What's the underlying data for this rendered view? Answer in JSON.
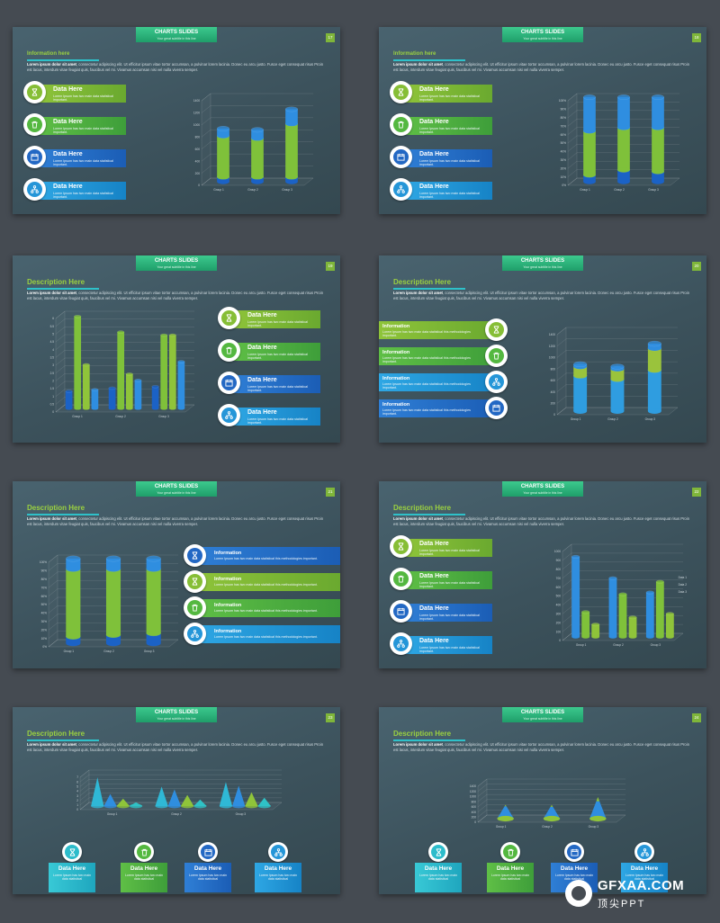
{
  "header": {
    "title": "CHARTS SLIDES",
    "subtitle": "Your great subtitle in this line"
  },
  "text": {
    "information_here": "Information here",
    "description_here": "Description Here",
    "body_bold": "Lorem ipsum dolor sit amet",
    "body_rest": ", consectetur adipiscing elit. Ut efficitur ipsum vitae tortor accumsan, a pulvinar lorem lacinia. Donec eu arcu justo. Fusce eget consequat risus Proin est lacus, interdum vitae feugiat quis, faucibus vel mi. Vivamus accumsan nisi vel nulla viverra semper.",
    "data_here": "Data Here",
    "information": "Information",
    "card_desc": "Lorem Ipsum has two main data statistical important.",
    "info_desc": "Lorem Ipsum has two main data statistical this methodologies important.",
    "box_desc": "Lorem Ipsum has two main data statistical"
  },
  "slides": [
    {
      "number": "17"
    },
    {
      "number": "18"
    },
    {
      "number": "19"
    },
    {
      "number": "20"
    },
    {
      "number": "21"
    },
    {
      "number": "22"
    },
    {
      "number": "23"
    },
    {
      "number": "24"
    }
  ],
  "icons": [
    "hourglass-icon",
    "trash-icon",
    "calendar-icon",
    "network-icon"
  ],
  "colors": {
    "green": "#8fc43a",
    "lime": "#5fbf46",
    "blue": "#2368c4",
    "sky": "#2596d8",
    "teal": "#2cbccb",
    "accent": "#2ec1c9"
  },
  "watermark": {
    "name": "GFXAA.COM",
    "cn": "顶尖PPT"
  },
  "chart_data": [
    {
      "slide": "17",
      "type": "bar",
      "categories": [
        "Group 1",
        "Group 2",
        "Group 3"
      ],
      "ylim": [
        0,
        1400
      ],
      "ticks": [
        "0",
        "200",
        "400",
        "600",
        "800",
        "1000",
        "1200",
        "1400"
      ],
      "series": [
        {
          "values": [
            80,
            80,
            80
          ]
        },
        {
          "values": [
            680,
            640,
            880
          ]
        },
        {
          "values": [
            120,
            140,
            240
          ]
        }
      ]
    },
    {
      "slide": "18",
      "type": "bar",
      "categories": [
        "Group 1",
        "Group 2",
        "Group 3"
      ],
      "ylim": [
        0,
        100
      ],
      "ticks": [
        "0%",
        "10%",
        "20%",
        "30%",
        "40%",
        "50%",
        "60%",
        "70%",
        "80%",
        "90%",
        "100%"
      ],
      "series": [
        {
          "values": [
            8,
            14,
            12
          ]
        },
        {
          "values": [
            52,
            50,
            52
          ]
        },
        {
          "values": [
            40,
            36,
            36
          ]
        }
      ]
    },
    {
      "slide": "19",
      "type": "bar",
      "categories": [
        "Group 1",
        "Group 2",
        "Group 3"
      ],
      "ylim": [
        0,
        6
      ],
      "ticks": [
        "0",
        "0.5",
        "1",
        "1.5",
        "2",
        "2.5",
        "3",
        "3.5",
        "4",
        "4.5",
        "5",
        "5.5",
        "6"
      ],
      "series": [
        {
          "values": [
            1.1,
            1.3,
            1.4
          ]
        },
        {
          "values": [
            5.9,
            4.9,
            4.7
          ]
        },
        {
          "values": [
            2.8,
            2.2,
            4.7
          ]
        },
        {
          "values": [
            1.2,
            1.8,
            3.0
          ]
        }
      ]
    },
    {
      "slide": "20",
      "type": "bar",
      "categories": [
        "Group 1",
        "Group 2",
        "Group 3"
      ],
      "ylim": [
        0,
        1400
      ],
      "ticks": [
        "0",
        "200",
        "400",
        "600",
        "800",
        "1000",
        "1200",
        "1400"
      ],
      "series": [
        {
          "values": [
            620,
            560,
            720
          ]
        },
        {
          "values": [
            160,
            180,
            380
          ]
        },
        {
          "values": [
            40,
            40,
            80
          ]
        }
      ]
    },
    {
      "slide": "21",
      "type": "bar",
      "categories": [
        "Group 1",
        "Group 2",
        "Group 3"
      ],
      "ylim": [
        0,
        100
      ],
      "ticks": [
        "0%",
        "10%",
        "20%",
        "30%",
        "40%",
        "50%",
        "60%",
        "70%",
        "80%",
        "90%",
        "100%"
      ],
      "series": [
        {
          "values": [
            8,
            10,
            12
          ]
        },
        {
          "values": [
            80,
            78,
            76
          ]
        },
        {
          "values": [
            12,
            12,
            12
          ]
        }
      ]
    },
    {
      "slide": "22",
      "type": "bar",
      "categories": [
        "Group 1",
        "Group 2",
        "Group 3"
      ],
      "ylim": [
        0,
        1000
      ],
      "ticks": [
        "0",
        "100",
        "200",
        "300",
        "400",
        "500",
        "600",
        "700",
        "800",
        "900",
        "1000"
      ],
      "series": [
        {
          "name": "Data 1",
          "values": [
            900,
            660,
            500
          ]
        },
        {
          "name": "Data 2",
          "values": [
            280,
            480,
            620
          ]
        },
        {
          "name": "Data 3",
          "values": [
            140,
            220,
            260
          ]
        }
      ]
    },
    {
      "slide": "23",
      "type": "bar",
      "categories": [
        "Group 1",
        "Group 2",
        "Group 3"
      ],
      "ylim": [
        0,
        7
      ],
      "ticks": [
        "0",
        "1",
        "2",
        "3",
        "4",
        "5",
        "6",
        "7"
      ],
      "series": [
        {
          "values": [
            6.2,
            4.2,
            5.2
          ]
        },
        {
          "values": [
            2.6,
            3.6,
            4.4
          ]
        },
        {
          "values": [
            1.6,
            2.4,
            3.0
          ]
        },
        {
          "values": [
            0.8,
            1.4,
            1.8
          ]
        }
      ]
    },
    {
      "slide": "24",
      "type": "bar",
      "categories": [
        "Group 1",
        "Group 2",
        "Group 3"
      ],
      "ylim": [
        0,
        1400
      ],
      "ticks": [
        "0",
        "200",
        "400",
        "600",
        "800",
        "1000",
        "1200",
        "1400"
      ],
      "series": [
        {
          "values": [
            480,
            460,
            680
          ]
        },
        {
          "values": [
            60,
            80,
            160
          ]
        }
      ]
    }
  ]
}
